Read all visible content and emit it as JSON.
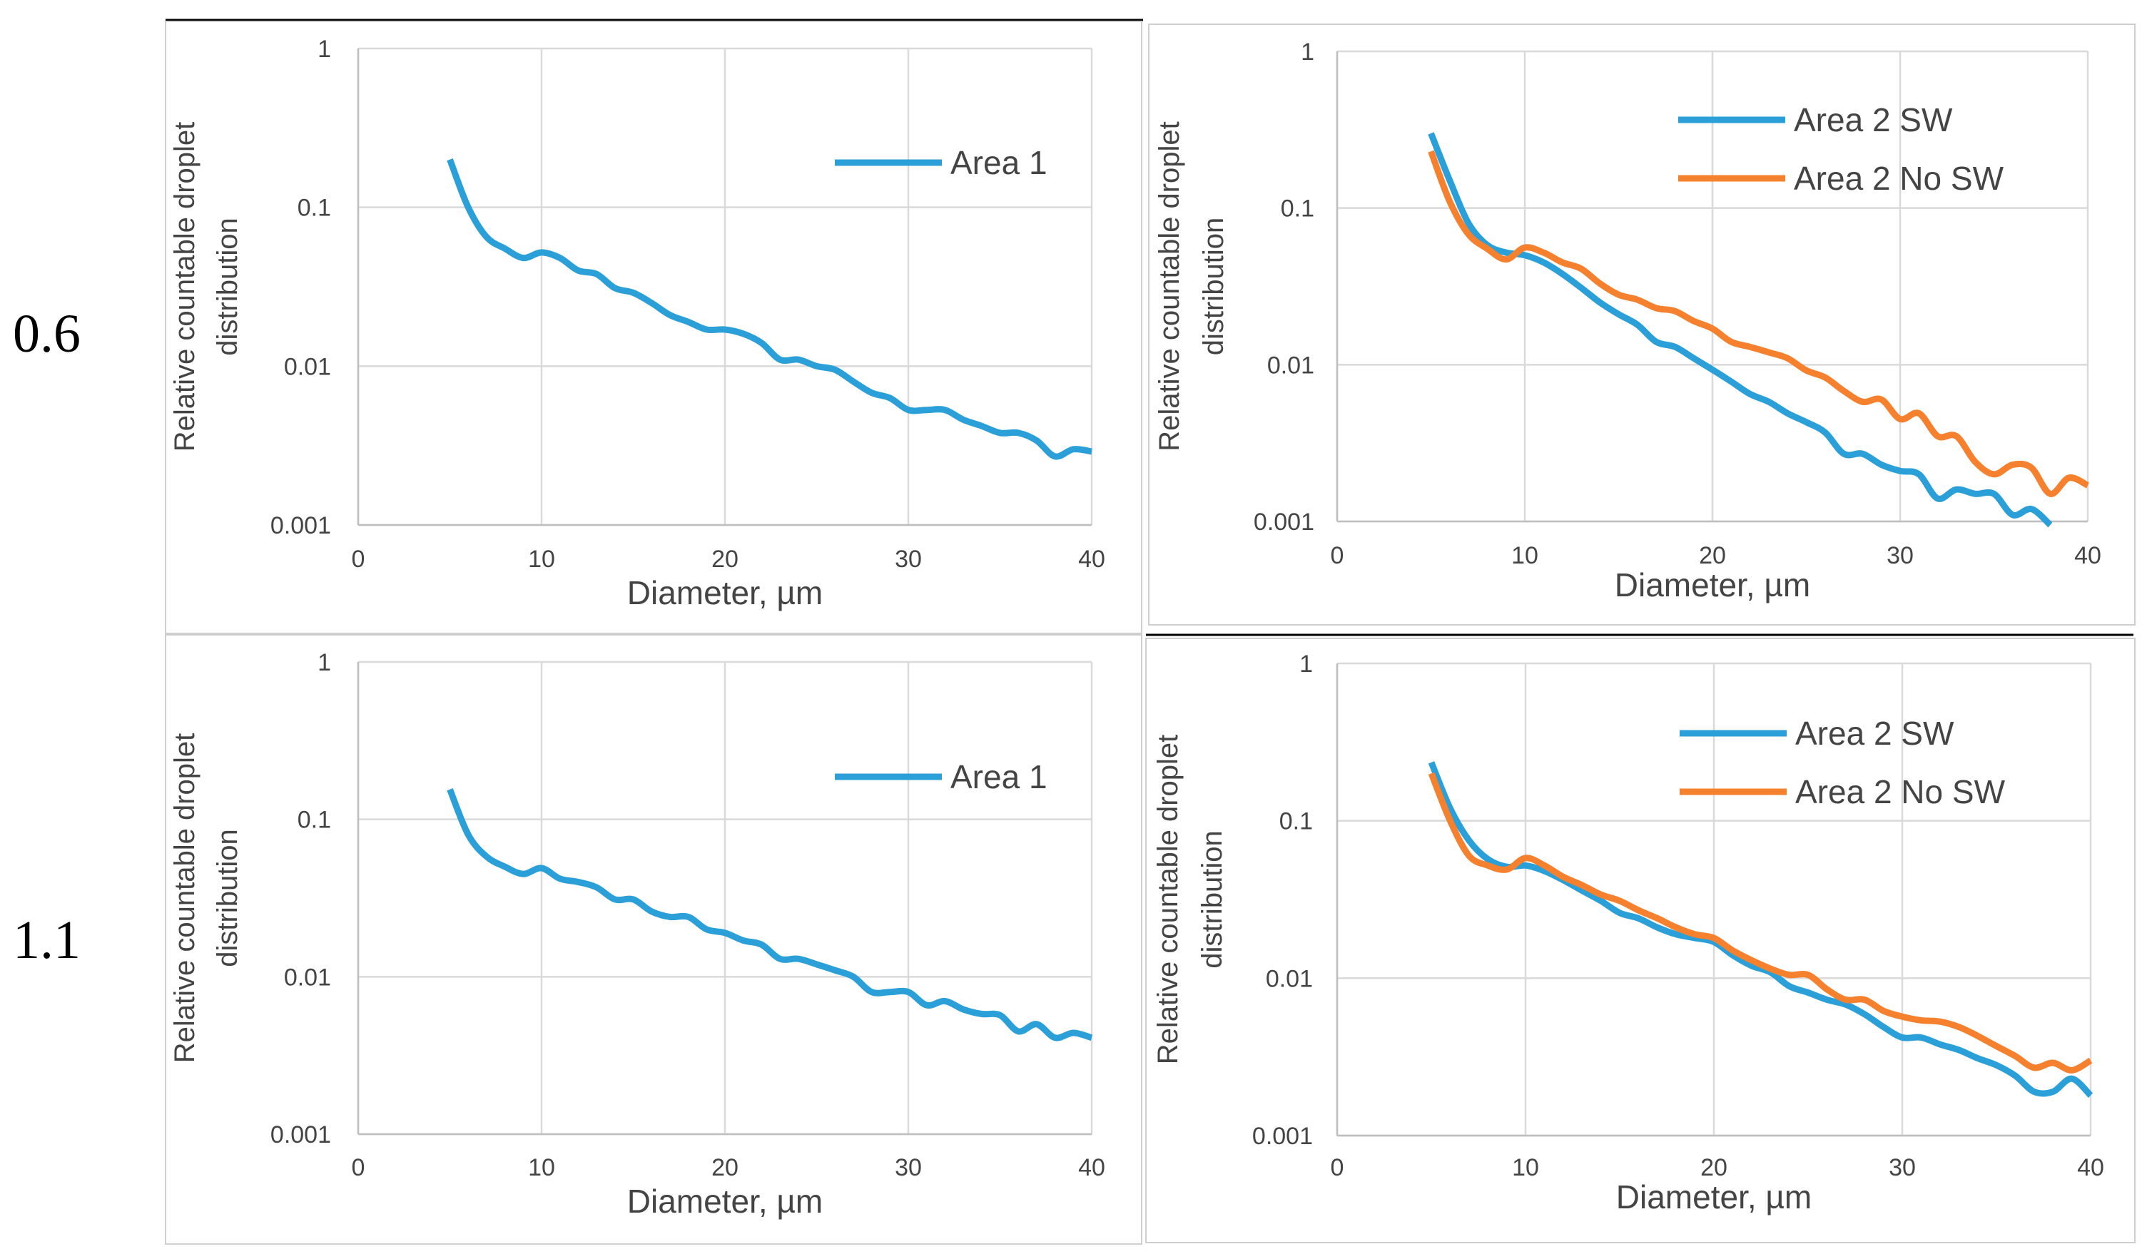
{
  "row_labels": [
    "0.6",
    "1.1"
  ],
  "colors": {
    "sw": "#2b9fd8",
    "nosw": "#f5802e",
    "grid": "#d9d9d9",
    "frame": "#cfcfcf",
    "text": "#444444"
  },
  "chart_data": [
    {
      "type": "line",
      "panel": "top-left",
      "yscale": "log",
      "xlabel": "Diameter, µm",
      "ylabel": [
        "Relative countable droplet",
        "distribution"
      ],
      "xlim": [
        0,
        40
      ],
      "ylim": [
        0.001,
        1
      ],
      "xticks": [
        "0",
        "10",
        "20",
        "30",
        "40"
      ],
      "yticks": [
        "1",
        "0.1",
        "0.01",
        "0.001"
      ],
      "legend": "top-right",
      "x": [
        5,
        6,
        7,
        8,
        9,
        10,
        11,
        12,
        13,
        14,
        15,
        16,
        17,
        18,
        19,
        20,
        21,
        22,
        23,
        24,
        25,
        26,
        27,
        28,
        29,
        30,
        31,
        32,
        33,
        34,
        35,
        36,
        37,
        38,
        39,
        40
      ],
      "series": [
        {
          "name": "Area 1",
          "color_key": "sw",
          "values": [
            0.2,
            0.1,
            0.065,
            0.055,
            0.048,
            0.052,
            0.048,
            0.04,
            0.038,
            0.031,
            0.029,
            0.025,
            0.021,
            0.019,
            0.017,
            0.017,
            0.016,
            0.014,
            0.011,
            0.011,
            0.01,
            0.0095,
            0.008,
            0.0068,
            0.0063,
            0.0053,
            0.0053,
            0.0053,
            0.0046,
            0.0042,
            0.0038,
            0.0038,
            0.0034,
            0.0027,
            0.003,
            0.0029
          ]
        }
      ]
    },
    {
      "type": "line",
      "panel": "top-right",
      "yscale": "log",
      "xlabel": "Diameter, µm",
      "ylabel": [
        "Relative countable droplet",
        "distribution"
      ],
      "xlim": [
        0,
        40
      ],
      "ylim": [
        0.001,
        1
      ],
      "xticks": [
        "0",
        "10",
        "20",
        "30",
        "40"
      ],
      "yticks": [
        "1",
        "0.1",
        "0.01",
        "0.001"
      ],
      "legend": "top-right",
      "x": [
        5,
        6,
        7,
        8,
        9,
        10,
        11,
        12,
        13,
        14,
        15,
        16,
        17,
        18,
        19,
        20,
        21,
        22,
        23,
        24,
        25,
        26,
        27,
        28,
        29,
        30,
        31,
        32,
        33,
        34,
        35,
        36,
        37,
        38,
        39,
        40
      ],
      "series": [
        {
          "name": "Area 2 SW",
          "color_key": "sw",
          "values": [
            0.3,
            0.15,
            0.08,
            0.058,
            0.052,
            0.05,
            0.045,
            0.038,
            0.031,
            0.025,
            0.021,
            0.018,
            0.014,
            0.013,
            0.011,
            0.0093,
            0.0078,
            0.0065,
            0.0058,
            0.0049,
            0.0043,
            0.0037,
            0.0027,
            0.0027,
            0.0023,
            0.0021,
            0.002,
            0.0014,
            0.0016,
            0.0015,
            0.0015,
            0.0011,
            0.0012,
            0.00095,
            null,
            null
          ]
        },
        {
          "name": "Area 2 No SW",
          "color_key": "nosw",
          "values": [
            0.23,
            0.11,
            0.068,
            0.055,
            0.047,
            0.056,
            0.052,
            0.045,
            0.041,
            0.033,
            0.028,
            0.026,
            0.023,
            0.022,
            0.019,
            0.017,
            0.014,
            0.013,
            0.012,
            0.011,
            0.0092,
            0.0083,
            0.0068,
            0.0058,
            0.006,
            0.0045,
            0.0049,
            0.0035,
            0.0035,
            0.0024,
            0.002,
            0.0023,
            0.0022,
            0.0015,
            0.0019,
            0.0017
          ]
        }
      ]
    },
    {
      "type": "line",
      "panel": "bottom-left",
      "yscale": "log",
      "xlabel": "Diameter, µm",
      "ylabel": [
        "Relative countable droplet",
        "distribution"
      ],
      "xlim": [
        0,
        40
      ],
      "ylim": [
        0.001,
        1
      ],
      "xticks": [
        "0",
        "10",
        "20",
        "30",
        "40"
      ],
      "yticks": [
        "1",
        "0.1",
        "0.01",
        "0.001"
      ],
      "legend": "top-right",
      "x": [
        5,
        6,
        7,
        8,
        9,
        10,
        11,
        12,
        13,
        14,
        15,
        16,
        17,
        18,
        19,
        20,
        21,
        22,
        23,
        24,
        25,
        26,
        27,
        28,
        29,
        30,
        31,
        32,
        33,
        34,
        35,
        36,
        37,
        38,
        39,
        40
      ],
      "series": [
        {
          "name": "Area 1",
          "color_key": "sw",
          "values": [
            0.155,
            0.08,
            0.058,
            0.05,
            0.045,
            0.049,
            0.042,
            0.04,
            0.037,
            0.031,
            0.031,
            0.026,
            0.024,
            0.024,
            0.02,
            0.019,
            0.017,
            0.016,
            0.013,
            0.013,
            0.012,
            0.011,
            0.01,
            0.008,
            0.008,
            0.008,
            0.0066,
            0.007,
            0.0062,
            0.0058,
            0.0057,
            0.0045,
            0.005,
            0.0041,
            0.0044,
            0.0041
          ]
        }
      ]
    },
    {
      "type": "line",
      "panel": "bottom-right",
      "yscale": "log",
      "xlabel": "Diameter, µm",
      "ylabel": [
        "Relative countable droplet",
        "distribution"
      ],
      "xlim": [
        0,
        40
      ],
      "ylim": [
        0.001,
        1
      ],
      "xticks": [
        "0",
        "10",
        "20",
        "30",
        "40"
      ],
      "yticks": [
        "1",
        "0.1",
        "0.01",
        "0.001"
      ],
      "legend": "top-right",
      "x": [
        5,
        6,
        7,
        8,
        9,
        10,
        11,
        12,
        13,
        14,
        15,
        16,
        17,
        18,
        19,
        20,
        21,
        22,
        23,
        24,
        25,
        26,
        27,
        28,
        29,
        30,
        31,
        32,
        33,
        34,
        35,
        36,
        37,
        38,
        39,
        40
      ],
      "series": [
        {
          "name": "Area 2 SW",
          "color_key": "sw",
          "values": [
            0.235,
            0.12,
            0.075,
            0.057,
            0.051,
            0.052,
            0.048,
            0.042,
            0.036,
            0.031,
            0.026,
            0.024,
            0.021,
            0.019,
            0.018,
            0.017,
            0.014,
            0.012,
            0.0109,
            0.0089,
            0.0081,
            0.0073,
            0.0068,
            0.0059,
            0.0049,
            0.0042,
            0.0042,
            0.0038,
            0.0035,
            0.0031,
            0.0028,
            0.0024,
            0.0019,
            0.0019,
            0.0023,
            0.0018
          ]
        },
        {
          "name": "Area 2 No SW",
          "color_key": "nosw",
          "values": [
            0.2,
            0.1,
            0.06,
            0.052,
            0.049,
            0.058,
            0.052,
            0.044,
            0.039,
            0.034,
            0.031,
            0.027,
            0.024,
            0.021,
            0.019,
            0.018,
            0.015,
            0.013,
            0.0115,
            0.0105,
            0.0105,
            0.0085,
            0.0073,
            0.0073,
            0.0062,
            0.0057,
            0.0054,
            0.0053,
            0.0049,
            0.0043,
            0.0037,
            0.0032,
            0.0027,
            0.0029,
            0.0026,
            0.003
          ]
        }
      ]
    }
  ]
}
